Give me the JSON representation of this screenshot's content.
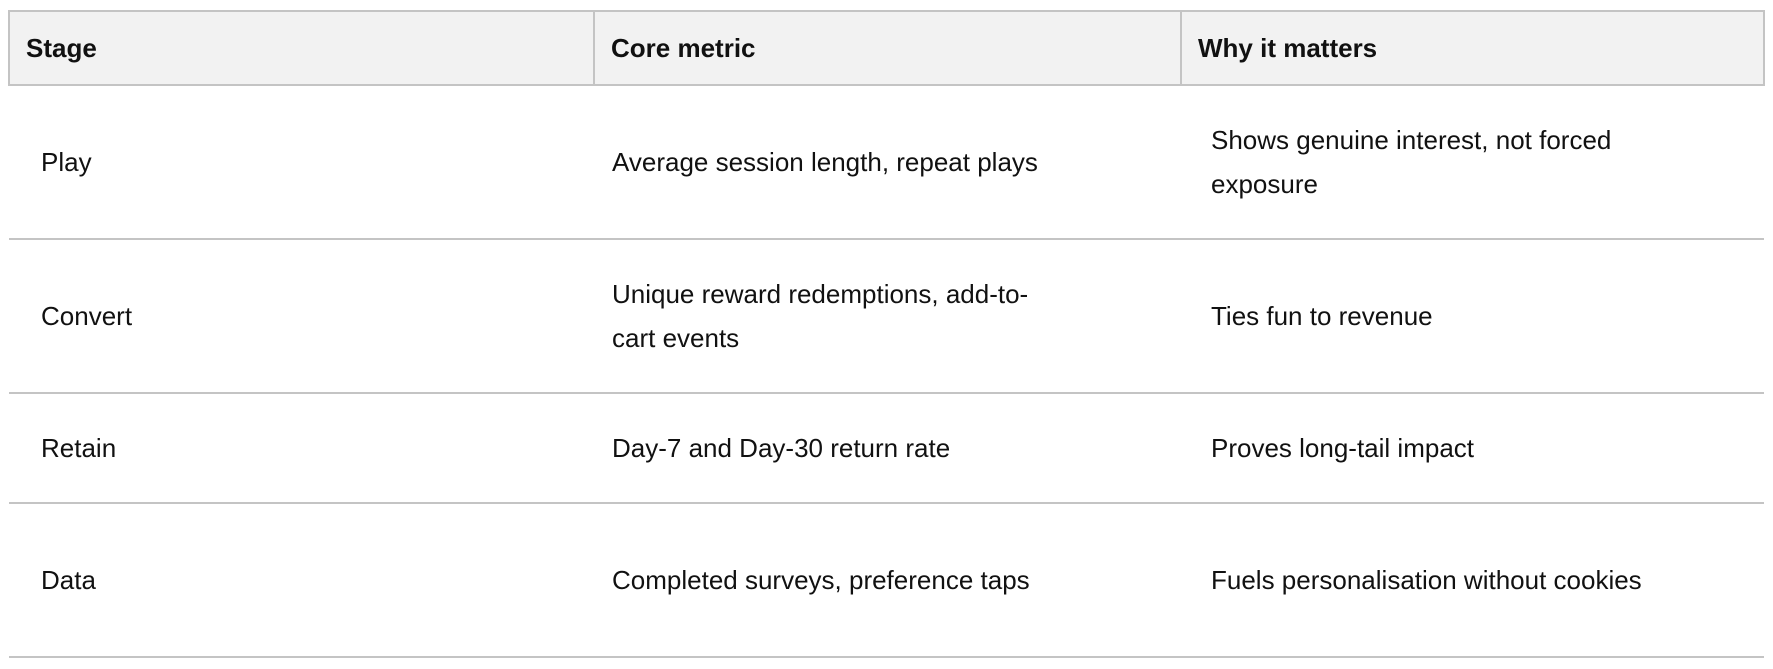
{
  "table": {
    "headers": [
      "Stage",
      "Core metric",
      "Why it matters"
    ],
    "rows": [
      [
        "Play",
        "Average session length, repeat plays",
        "Shows genuine interest, not forced exposure"
      ],
      [
        "Convert",
        "Unique reward redemptions, add-to-cart events",
        "Ties fun to revenue"
      ],
      [
        "Retain",
        "Day-7 and Day-30 return rate",
        "Proves long-tail impact"
      ],
      [
        "Data",
        "Completed surveys, preference taps",
        "Fuels personalisation without cookies"
      ]
    ]
  }
}
